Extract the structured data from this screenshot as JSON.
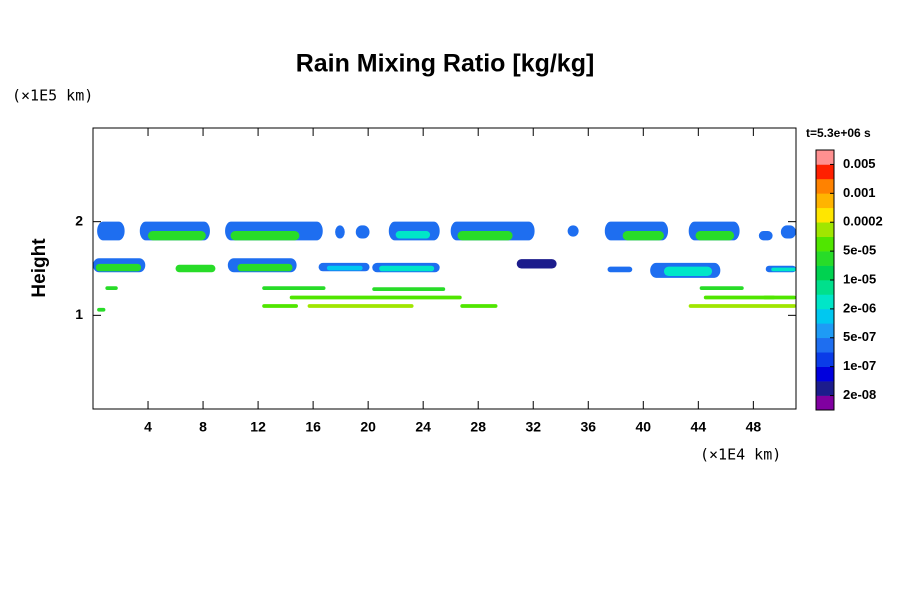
{
  "chart_data": {
    "type": "contour",
    "title": "Rain Mixing Ratio [kg/kg]",
    "y_label": "Height",
    "y_unit": "(×1E5 km)",
    "x_unit": "(×1E4 km)",
    "time_label": "t=5.3e+06 s",
    "xlim": [
      0,
      51.1
    ],
    "ylim": [
      0,
      3
    ],
    "xticks": [
      4,
      8,
      12,
      16,
      20,
      24,
      28,
      32,
      36,
      40,
      44,
      48
    ],
    "yticks": [
      1,
      2
    ],
    "colorbar_colors": [
      "#8000a0",
      "#1c1c8c",
      "#0000dd",
      "#0a3ce8",
      "#1e6ef0",
      "#1e9bf5",
      "#00c8f0",
      "#00e6c8",
      "#00e08c",
      "#00d250",
      "#28dc28",
      "#50e600",
      "#a0e600",
      "#ffe600",
      "#ffb400",
      "#ff8200",
      "#ff2000",
      "#ff9090"
    ],
    "levels": [
      {
        "value": 2e-08,
        "label": "2e-08"
      },
      {
        "value": 1e-07,
        "label": "1e-07"
      },
      {
        "value": 5e-07,
        "label": "5e-07"
      },
      {
        "value": 2e-06,
        "label": "2e-06"
      },
      {
        "value": 1e-05,
        "label": "1e-05"
      },
      {
        "value": 5e-05,
        "label": "5e-05"
      },
      0.0002,
      0.001,
      0.005
    ],
    "patches": [
      {
        "x": [
          0.3,
          2.3
        ],
        "y": [
          1.8,
          2.0
        ],
        "color": "#1e6ef0"
      },
      {
        "x": [
          3.4,
          8.5
        ],
        "y": [
          1.8,
          2.0
        ],
        "color": "#1e6ef0"
      },
      {
        "x": [
          4.0,
          8.2
        ],
        "y": [
          1.8,
          1.9
        ],
        "color": "#28dc28"
      },
      {
        "x": [
          9.6,
          16.7
        ],
        "y": [
          1.8,
          2.0
        ],
        "color": "#1e6ef0"
      },
      {
        "x": [
          10.0,
          15.0
        ],
        "y": [
          1.8,
          1.9
        ],
        "color": "#28dc28"
      },
      {
        "x": [
          17.6,
          18.3
        ],
        "y": [
          1.82,
          1.96
        ],
        "color": "#1e6ef0"
      },
      {
        "x": [
          19.1,
          20.1
        ],
        "y": [
          1.82,
          1.96
        ],
        "color": "#1e6ef0"
      },
      {
        "x": [
          21.5,
          25.2
        ],
        "y": [
          1.8,
          2.0
        ],
        "color": "#1e6ef0"
      },
      {
        "x": [
          22.0,
          24.5
        ],
        "y": [
          1.82,
          1.9
        ],
        "color": "#00e6c8"
      },
      {
        "x": [
          26.0,
          32.1
        ],
        "y": [
          1.8,
          2.0
        ],
        "color": "#1e6ef0"
      },
      {
        "x": [
          26.5,
          30.5
        ],
        "y": [
          1.8,
          1.9
        ],
        "color": "#28dc28"
      },
      {
        "x": [
          34.5,
          35.3
        ],
        "y": [
          1.84,
          1.96
        ],
        "color": "#1e6ef0"
      },
      {
        "x": [
          37.2,
          41.8
        ],
        "y": [
          1.8,
          2.0
        ],
        "color": "#1e6ef0"
      },
      {
        "x": [
          38.5,
          41.5
        ],
        "y": [
          1.8,
          1.9
        ],
        "color": "#28dc28"
      },
      {
        "x": [
          43.3,
          47.0
        ],
        "y": [
          1.8,
          2.0
        ],
        "color": "#1e6ef0"
      },
      {
        "x": [
          43.8,
          46.6
        ],
        "y": [
          1.8,
          1.9
        ],
        "color": "#28dc28"
      },
      {
        "x": [
          48.4,
          49.4
        ],
        "y": [
          1.8,
          1.9
        ],
        "color": "#1e6ef0"
      },
      {
        "x": [
          50.0,
          51.1
        ],
        "y": [
          1.82,
          1.96
        ],
        "color": "#1e6ef0"
      },
      {
        "x": [
          0,
          3.8
        ],
        "y": [
          1.46,
          1.61
        ],
        "color": "#1e6ef0"
      },
      {
        "x": [
          0.2,
          3.5
        ],
        "y": [
          1.47,
          1.55
        ],
        "color": "#28dc28"
      },
      {
        "x": [
          6.0,
          8.9
        ],
        "y": [
          1.46,
          1.54
        ],
        "color": "#28dc28"
      },
      {
        "x": [
          9.8,
          14.8
        ],
        "y": [
          1.46,
          1.61
        ],
        "color": "#1e6ef0"
      },
      {
        "x": [
          10.5,
          14.5
        ],
        "y": [
          1.47,
          1.55
        ],
        "color": "#28dc28"
      },
      {
        "x": [
          16.4,
          20.1
        ],
        "y": [
          1.47,
          1.56
        ],
        "color": "#1e6ef0"
      },
      {
        "x": [
          17.0,
          19.6
        ],
        "y": [
          1.48,
          1.53
        ],
        "color": "#00c8f0"
      },
      {
        "x": [
          20.3,
          25.2
        ],
        "y": [
          1.46,
          1.56
        ],
        "color": "#1e6ef0"
      },
      {
        "x": [
          20.8,
          24.8
        ],
        "y": [
          1.47,
          1.53
        ],
        "color": "#00e6c8"
      },
      {
        "x": [
          30.8,
          33.7
        ],
        "y": [
          1.5,
          1.6
        ],
        "color": "#1c1c8c"
      },
      {
        "x": [
          37.4,
          39.2
        ],
        "y": [
          1.46,
          1.52
        ],
        "color": "#1e6ef0"
      },
      {
        "x": [
          40.5,
          45.6
        ],
        "y": [
          1.4,
          1.56
        ],
        "color": "#1e6ef0"
      },
      {
        "x": [
          41.5,
          45.0
        ],
        "y": [
          1.42,
          1.52
        ],
        "color": "#00e6c8"
      },
      {
        "x": [
          48.9,
          51.1
        ],
        "y": [
          1.46,
          1.53
        ],
        "color": "#1e6ef0"
      },
      {
        "x": [
          49.3,
          51.1
        ],
        "y": [
          1.47,
          1.51
        ],
        "color": "#00e6c8"
      },
      {
        "x": [
          0.9,
          1.8
        ],
        "y": [
          1.27,
          1.31
        ],
        "color": "#28dc28"
      },
      {
        "x": [
          12.3,
          16.9
        ],
        "y": [
          1.27,
          1.31
        ],
        "color": "#28dc28"
      },
      {
        "x": [
          20.3,
          25.6
        ],
        "y": [
          1.26,
          1.3
        ],
        "color": "#28dc28"
      },
      {
        "x": [
          14.3,
          26.8
        ],
        "y": [
          1.17,
          1.21
        ],
        "color": "#50e600"
      },
      {
        "x": [
          12.3,
          14.9
        ],
        "y": [
          1.08,
          1.12
        ],
        "color": "#50e600"
      },
      {
        "x": [
          15.6,
          23.3
        ],
        "y": [
          1.08,
          1.12
        ],
        "color": "#a0e600"
      },
      {
        "x": [
          26.7,
          29.4
        ],
        "y": [
          1.08,
          1.12
        ],
        "color": "#50e600"
      },
      {
        "x": [
          44.1,
          47.3
        ],
        "y": [
          1.27,
          1.31
        ],
        "color": "#28dc28"
      },
      {
        "x": [
          44.4,
          49.6
        ],
        "y": [
          1.17,
          1.21
        ],
        "color": "#50e600"
      },
      {
        "x": [
          48.7,
          51.1
        ],
        "y": [
          1.17,
          1.21
        ],
        "color": "#50e600"
      },
      {
        "x": [
          43.3,
          51.1
        ],
        "y": [
          1.08,
          1.12
        ],
        "color": "#a0e600"
      },
      {
        "x": [
          0.3,
          0.9
        ],
        "y": [
          1.04,
          1.08
        ],
        "color": "#28dc28"
      }
    ]
  }
}
